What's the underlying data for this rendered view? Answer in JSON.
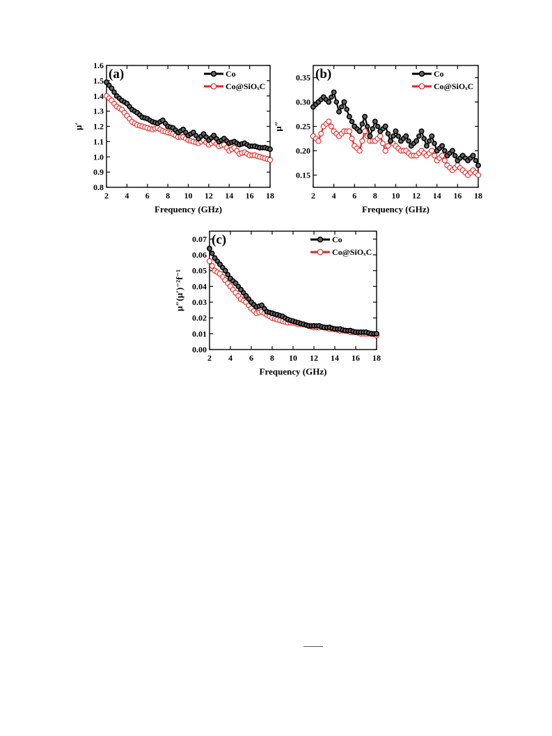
{
  "figure": {
    "footer_mark": ""
  },
  "chart_data": [
    {
      "type": "scatter",
      "panel_label": "(a)",
      "xlabel": "Frequency (GHz)",
      "ylabel": "μ′",
      "xlim": [
        2,
        18
      ],
      "ylim": [
        0.8,
        1.6
      ],
      "xticks": [
        2,
        4,
        6,
        8,
        10,
        12,
        14,
        16,
        18
      ],
      "yticks": [
        0.8,
        0.9,
        1.0,
        1.1,
        1.2,
        1.3,
        1.4,
        1.5,
        1.6
      ],
      "ytick_decimals": 1,
      "legend_position": "top-right",
      "series": [
        {
          "name": "Co",
          "color": "#000000",
          "x": [
            2,
            2.5,
            3,
            3.5,
            4,
            4.5,
            5,
            5.5,
            6,
            6.5,
            7,
            7.5,
            8,
            8.5,
            9,
            9.5,
            10,
            10.5,
            11,
            11.5,
            12,
            12.5,
            13,
            13.5,
            14,
            14.5,
            15,
            15.5,
            16,
            16.5,
            17,
            17.5,
            18
          ],
          "y": [
            1.49,
            1.45,
            1.4,
            1.37,
            1.35,
            1.31,
            1.29,
            1.26,
            1.25,
            1.23,
            1.22,
            1.24,
            1.2,
            1.19,
            1.16,
            1.18,
            1.14,
            1.16,
            1.12,
            1.15,
            1.11,
            1.14,
            1.1,
            1.12,
            1.09,
            1.1,
            1.08,
            1.09,
            1.07,
            1.07,
            1.06,
            1.06,
            1.05
          ]
        },
        {
          "name": "Co@SiOₓC",
          "color": "#e8231f",
          "x": [
            2,
            2.5,
            3,
            3.5,
            4,
            4.5,
            5,
            5.5,
            6,
            6.5,
            7,
            7.5,
            8,
            8.5,
            9,
            9.5,
            10,
            10.5,
            11,
            11.5,
            12,
            12.5,
            13,
            13.5,
            14,
            14.5,
            15,
            15.5,
            16,
            16.5,
            17,
            17.5,
            18
          ],
          "y": [
            1.4,
            1.37,
            1.33,
            1.31,
            1.27,
            1.23,
            1.21,
            1.2,
            1.19,
            1.18,
            1.19,
            1.17,
            1.16,
            1.15,
            1.13,
            1.13,
            1.11,
            1.1,
            1.09,
            1.11,
            1.08,
            1.1,
            1.07,
            1.08,
            1.04,
            1.06,
            1.02,
            1.03,
            1.01,
            1.01,
            1.0,
            0.99,
            0.98
          ]
        }
      ]
    },
    {
      "type": "scatter",
      "panel_label": "(b)",
      "xlabel": "Frequency (GHz)",
      "ylabel": "μ″",
      "xlim": [
        2,
        18
      ],
      "ylim": [
        0.125,
        0.375
      ],
      "xticks": [
        2,
        4,
        6,
        8,
        10,
        12,
        14,
        16,
        18
      ],
      "yticks": [
        0.15,
        0.2,
        0.25,
        0.3,
        0.35
      ],
      "ytick_decimals": 2,
      "legend_position": "top-right",
      "series": [
        {
          "name": "Co",
          "color": "#000000",
          "x": [
            2,
            2.5,
            3,
            3.5,
            4,
            4.5,
            5,
            5.5,
            6,
            6.5,
            7,
            7.5,
            8,
            8.5,
            9,
            9.5,
            10,
            10.5,
            11,
            11.5,
            12,
            12.5,
            13,
            13.5,
            14,
            14.5,
            15,
            15.5,
            16,
            16.5,
            17,
            17.5,
            18
          ],
          "y": [
            0.29,
            0.3,
            0.31,
            0.3,
            0.32,
            0.28,
            0.3,
            0.27,
            0.25,
            0.24,
            0.27,
            0.23,
            0.26,
            0.24,
            0.25,
            0.22,
            0.24,
            0.22,
            0.23,
            0.21,
            0.22,
            0.24,
            0.21,
            0.23,
            0.2,
            0.21,
            0.19,
            0.2,
            0.18,
            0.19,
            0.18,
            0.19,
            0.17
          ]
        },
        {
          "name": "Co@SiOₓC",
          "color": "#e8231f",
          "x": [
            2,
            2.5,
            3,
            3.5,
            4,
            4.5,
            5,
            5.5,
            6,
            6.5,
            7,
            7.5,
            8,
            8.5,
            9,
            9.5,
            10,
            10.5,
            11,
            11.5,
            12,
            12.5,
            13,
            13.5,
            14,
            14.5,
            15,
            15.5,
            16,
            16.5,
            17,
            17.5,
            18
          ],
          "y": [
            0.23,
            0.22,
            0.25,
            0.26,
            0.24,
            0.23,
            0.24,
            0.24,
            0.21,
            0.2,
            0.24,
            0.22,
            0.22,
            0.23,
            0.2,
            0.22,
            0.21,
            0.2,
            0.2,
            0.19,
            0.19,
            0.2,
            0.19,
            0.2,
            0.18,
            0.19,
            0.17,
            0.16,
            0.17,
            0.16,
            0.15,
            0.16,
            0.15
          ]
        }
      ]
    },
    {
      "type": "scatter",
      "panel_label": "(c)",
      "xlabel": "Frequency (GHz)",
      "ylabel": "μ″(μ′)⁻²f⁻¹",
      "xlim": [
        2,
        18
      ],
      "ylim": [
        0.0,
        0.075
      ],
      "xticks": [
        2,
        4,
        6,
        8,
        10,
        12,
        14,
        16,
        18
      ],
      "yticks": [
        0.0,
        0.01,
        0.02,
        0.03,
        0.04,
        0.05,
        0.06,
        0.07
      ],
      "ytick_decimals": 2,
      "legend_position": "top-right",
      "series": [
        {
          "name": "Co",
          "color": "#000000",
          "x": [
            2,
            2.5,
            3,
            3.5,
            4,
            4.5,
            5,
            5.5,
            6,
            6.5,
            7,
            7.5,
            8,
            8.5,
            9,
            9.5,
            10,
            10.5,
            11,
            11.5,
            12,
            12.5,
            13,
            13.5,
            14,
            14.5,
            15,
            15.5,
            16,
            16.5,
            17,
            17.5,
            18
          ],
          "y": [
            0.064,
            0.058,
            0.054,
            0.05,
            0.045,
            0.042,
            0.038,
            0.034,
            0.03,
            0.027,
            0.028,
            0.024,
            0.023,
            0.022,
            0.021,
            0.019,
            0.018,
            0.017,
            0.016,
            0.015,
            0.015,
            0.015,
            0.014,
            0.014,
            0.013,
            0.013,
            0.012,
            0.012,
            0.011,
            0.011,
            0.011,
            0.01,
            0.01
          ]
        },
        {
          "name": "Co@SiOₓC",
          "color": "#e8231f",
          "x": [
            2,
            2.5,
            3,
            3.5,
            4,
            4.5,
            5,
            5.5,
            6,
            6.5,
            7,
            7.5,
            8,
            8.5,
            9,
            9.5,
            10,
            10.5,
            11,
            11.5,
            12,
            12.5,
            13,
            13.5,
            14,
            14.5,
            15,
            15.5,
            16,
            16.5,
            17,
            17.5,
            18
          ],
          "y": [
            0.056,
            0.05,
            0.048,
            0.044,
            0.04,
            0.036,
            0.032,
            0.03,
            0.026,
            0.023,
            0.024,
            0.022,
            0.02,
            0.019,
            0.018,
            0.017,
            0.017,
            0.016,
            0.016,
            0.015,
            0.014,
            0.014,
            0.014,
            0.013,
            0.013,
            0.012,
            0.012,
            0.011,
            0.011,
            0.01,
            0.01,
            0.01,
            0.009
          ]
        }
      ]
    }
  ]
}
